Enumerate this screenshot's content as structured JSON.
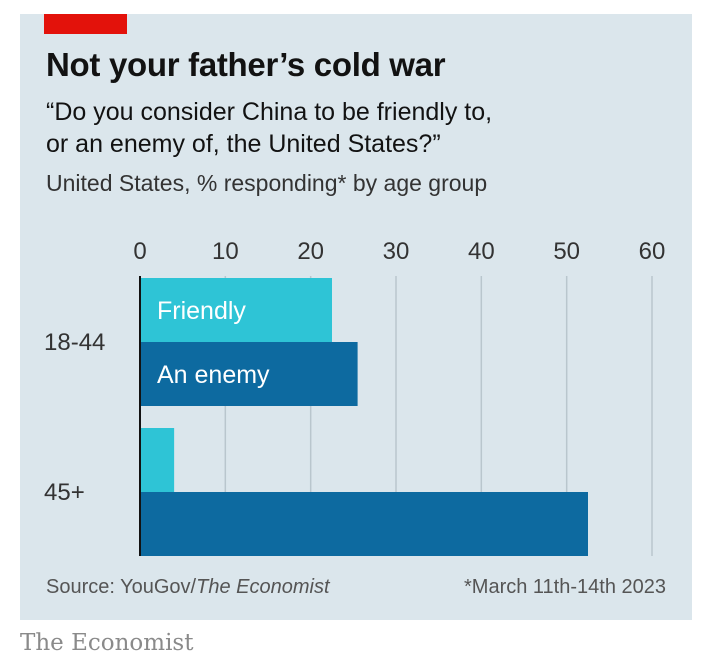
{
  "header": {
    "title": "Not your father’s cold war",
    "subtitle_line1": "“Do you consider China to be friendly to,",
    "subtitle_line2": "or an enemy of, the United States?”",
    "units": "United States, % responding* by age group"
  },
  "footer": {
    "source_prefix": "Source: YouGov/",
    "source_publication": "The Economist",
    "note": "*March 11th-14th 2023"
  },
  "brand": "The Economist",
  "colors": {
    "background": "#dbe6ec",
    "accent_red": "#e3120b",
    "friendly": "#2ec4d6",
    "enemy": "#0d6aa0"
  },
  "chart_data": {
    "type": "bar",
    "orientation": "horizontal",
    "categories": [
      "18-44",
      "45+"
    ],
    "series": [
      {
        "name": "Friendly",
        "values": [
          22.5,
          4
        ]
      },
      {
        "name": "An enemy",
        "values": [
          25.5,
          52.5
        ]
      }
    ],
    "xlim": [
      0,
      60
    ],
    "xticks": [
      "0",
      "10",
      "20",
      "30",
      "40",
      "50",
      "60"
    ],
    "grid": true,
    "legend": "inline labels on first category bars"
  }
}
